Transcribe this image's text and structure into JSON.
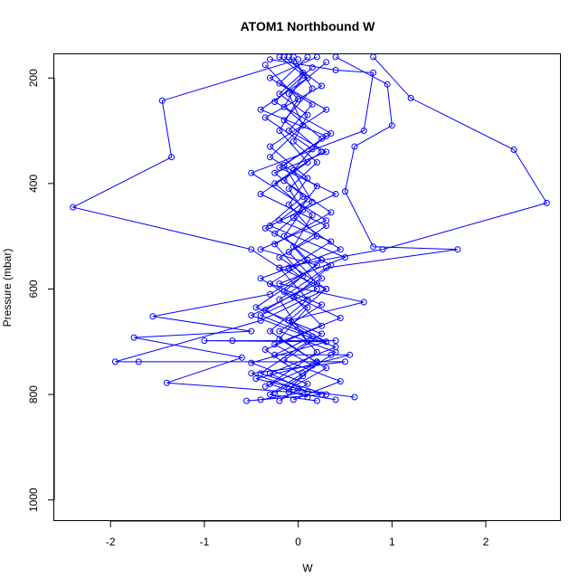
{
  "chart_data": {
    "type": "line",
    "title": "ATOM1 Northbound W",
    "xlabel": "W",
    "ylabel": "Pressure (mbar)",
    "xlim": [
      -2.6,
      2.8
    ],
    "ylim": [
      1040,
      155
    ],
    "y_reversed": true,
    "grid": false,
    "legend": "none",
    "marker": "open-circle",
    "color": "#0000ff",
    "x_ticks": [
      -2,
      -1,
      0,
      1,
      2
    ],
    "x_tick_labels": [
      "-2",
      "-1",
      "0",
      "1",
      "2"
    ],
    "y_ticks": [
      200,
      400,
      600,
      800,
      1000
    ],
    "y_tick_labels": [
      "200",
      "400",
      "600",
      "800",
      "1000"
    ],
    "series": [
      {
        "points": [
          [
            -0.1,
            160
          ],
          [
            0.05,
            190
          ],
          [
            -0.2,
            230
          ],
          [
            0.1,
            270
          ],
          [
            -0.05,
            320
          ],
          [
            0.2,
            360
          ],
          [
            -0.1,
            410
          ],
          [
            0.05,
            450
          ],
          [
            -0.15,
            500
          ],
          [
            0.1,
            545
          ],
          [
            -0.3,
            590
          ],
          [
            0.25,
            630
          ],
          [
            -0.2,
            680
          ],
          [
            0.4,
            720
          ],
          [
            0.05,
            760
          ],
          [
            -0.3,
            800
          ],
          [
            0.2,
            812
          ]
        ]
      },
      {
        "points": [
          [
            0.2,
            160
          ],
          [
            -0.3,
            200
          ],
          [
            0.15,
            250
          ],
          [
            -0.1,
            300
          ],
          [
            0.3,
            340
          ],
          [
            -0.25,
            380
          ],
          [
            0.1,
            430
          ],
          [
            -0.2,
            470
          ],
          [
            0.35,
            510
          ],
          [
            -0.1,
            560
          ],
          [
            0.2,
            600
          ],
          [
            -0.4,
            650
          ],
          [
            0.3,
            700
          ],
          [
            -0.5,
            740
          ],
          [
            0.1,
            780
          ],
          [
            -0.2,
            812
          ]
        ]
      },
      {
        "points": [
          [
            0.0,
            165
          ],
          [
            -1.45,
            243
          ],
          [
            -1.35,
            350
          ],
          [
            -2.4,
            445
          ],
          [
            -0.5,
            525
          ],
          [
            -0.2,
            560
          ],
          [
            0.1,
            620
          ],
          [
            -0.3,
            680
          ],
          [
            0.2,
            740
          ],
          [
            -0.1,
            790
          ]
        ]
      },
      {
        "points": [
          [
            0.8,
            160
          ],
          [
            1.2,
            238
          ],
          [
            2.3,
            336
          ],
          [
            2.65,
            437
          ],
          [
            0.9,
            525
          ],
          [
            -0.2,
            560
          ],
          [
            0.3,
            600
          ],
          [
            -0.1,
            660
          ],
          [
            0.2,
            720
          ],
          [
            -0.3,
            780
          ],
          [
            0.1,
            805
          ]
        ]
      },
      {
        "points": [
          [
            0.4,
            160
          ],
          [
            0.95,
            212
          ],
          [
            1.0,
            290
          ],
          [
            0.6,
            330
          ],
          [
            0.5,
            415
          ],
          [
            0.8,
            520
          ],
          [
            1.7,
            525
          ],
          [
            0.3,
            560
          ],
          [
            -0.2,
            620
          ],
          [
            0.1,
            700
          ],
          [
            -0.4,
            760
          ],
          [
            0.3,
            800
          ]
        ]
      },
      {
        "points": [
          [
            -0.3,
            165
          ],
          [
            0.4,
            185
          ],
          [
            0.8,
            190
          ],
          [
            0.7,
            300
          ],
          [
            -0.5,
            380
          ],
          [
            0.3,
            470
          ],
          [
            -0.4,
            525
          ],
          [
            0.2,
            555
          ],
          [
            -0.3,
            610
          ],
          [
            -1.55,
            652
          ],
          [
            -0.5,
            680
          ],
          [
            -1.75,
            692
          ],
          [
            -0.6,
            730
          ],
          [
            -1.4,
            778
          ],
          [
            -0.1,
            795
          ],
          [
            0.4,
            810
          ]
        ]
      },
      {
        "points": [
          [
            -0.2,
            160
          ],
          [
            0.1,
            200
          ],
          [
            -0.4,
            260
          ],
          [
            0.3,
            310
          ],
          [
            -0.2,
            370
          ],
          [
            0.4,
            420
          ],
          [
            -0.3,
            480
          ],
          [
            0.5,
            540
          ],
          [
            -0.2,
            590
          ],
          [
            0.7,
            625
          ],
          [
            -0.1,
            660
          ],
          [
            0.3,
            700
          ],
          [
            -1.0,
            698
          ],
          [
            -0.7,
            698
          ],
          [
            0.4,
            698
          ]
        ]
      },
      {
        "points": [
          [
            0.1,
            160
          ],
          [
            -0.2,
            210
          ],
          [
            0.3,
            260
          ],
          [
            -0.3,
            330
          ],
          [
            0.1,
            390
          ],
          [
            -0.1,
            440
          ],
          [
            0.2,
            500
          ],
          [
            -0.2,
            540
          ],
          [
            0.3,
            600
          ],
          [
            -0.4,
            660
          ],
          [
            -1.95,
            738
          ],
          [
            -1.7,
            738
          ],
          [
            0.2,
            738
          ],
          [
            0.5,
            738
          ],
          [
            -0.5,
            760
          ],
          [
            0.0,
            790
          ]
        ]
      },
      {
        "points": [
          [
            -0.05,
            160
          ],
          [
            0.15,
            220
          ],
          [
            -0.15,
            280
          ],
          [
            0.25,
            340
          ],
          [
            -0.25,
            400
          ],
          [
            0.15,
            460
          ],
          [
            -0.05,
            520
          ],
          [
            0.25,
            580
          ],
          [
            -0.35,
            640
          ],
          [
            0.15,
            690
          ],
          [
            -0.25,
            725
          ],
          [
            0.35,
            725
          ],
          [
            0.55,
            725
          ],
          [
            -0.45,
            770
          ],
          [
            0.25,
            800
          ],
          [
            -0.55,
            812
          ]
        ]
      },
      {
        "points": [
          [
            0.3,
            170
          ],
          [
            -0.1,
            230
          ],
          [
            0.05,
            290
          ],
          [
            -0.3,
            350
          ],
          [
            0.2,
            405
          ],
          [
            -0.05,
            465
          ],
          [
            0.45,
            525
          ],
          [
            -0.4,
            580
          ],
          [
            0.1,
            635
          ],
          [
            -0.2,
            695
          ],
          [
            0.3,
            750
          ],
          [
            -0.1,
            790
          ],
          [
            0.6,
            805
          ]
        ]
      },
      {
        "points": [
          [
            -0.35,
            175
          ],
          [
            0.0,
            240
          ],
          [
            -0.2,
            300
          ],
          [
            0.1,
            360
          ],
          [
            -0.4,
            420
          ],
          [
            0.3,
            480
          ],
          [
            -0.1,
            530
          ],
          [
            0.2,
            590
          ],
          [
            -0.5,
            650
          ],
          [
            0.4,
            710
          ],
          [
            -0.3,
            760
          ],
          [
            0.1,
            795
          ],
          [
            -0.4,
            810
          ]
        ]
      },
      {
        "points": [
          [
            0.15,
            180
          ],
          [
            -0.25,
            245
          ],
          [
            0.35,
            305
          ],
          [
            -0.15,
            365
          ],
          [
            0.05,
            425
          ],
          [
            -0.35,
            485
          ],
          [
            0.25,
            545
          ],
          [
            -0.15,
            605
          ],
          [
            0.45,
            655
          ],
          [
            -0.25,
            705
          ],
          [
            0.15,
            745
          ],
          [
            -0.35,
            785
          ]
        ]
      },
      {
        "points": [
          [
            -0.15,
            160
          ],
          [
            0.25,
            215
          ],
          [
            -0.35,
            275
          ],
          [
            0.15,
            335
          ],
          [
            -0.15,
            395
          ],
          [
            0.35,
            455
          ],
          [
            -0.25,
            515
          ],
          [
            0.05,
            575
          ],
          [
            -0.45,
            635
          ],
          [
            0.25,
            685
          ],
          [
            -0.15,
            735
          ],
          [
            0.45,
            775
          ],
          [
            -0.05,
            810
          ]
        ]
      },
      {
        "points": [
          [
            0.05,
            195
          ],
          [
            -0.15,
            255
          ],
          [
            0.25,
            315
          ],
          [
            -0.05,
            375
          ],
          [
            0.15,
            435
          ],
          [
            -0.25,
            495
          ],
          [
            0.35,
            555
          ],
          [
            -0.05,
            615
          ],
          [
            0.25,
            670
          ],
          [
            -0.35,
            715
          ],
          [
            0.05,
            765
          ],
          [
            -0.25,
            798
          ]
        ]
      }
    ]
  }
}
